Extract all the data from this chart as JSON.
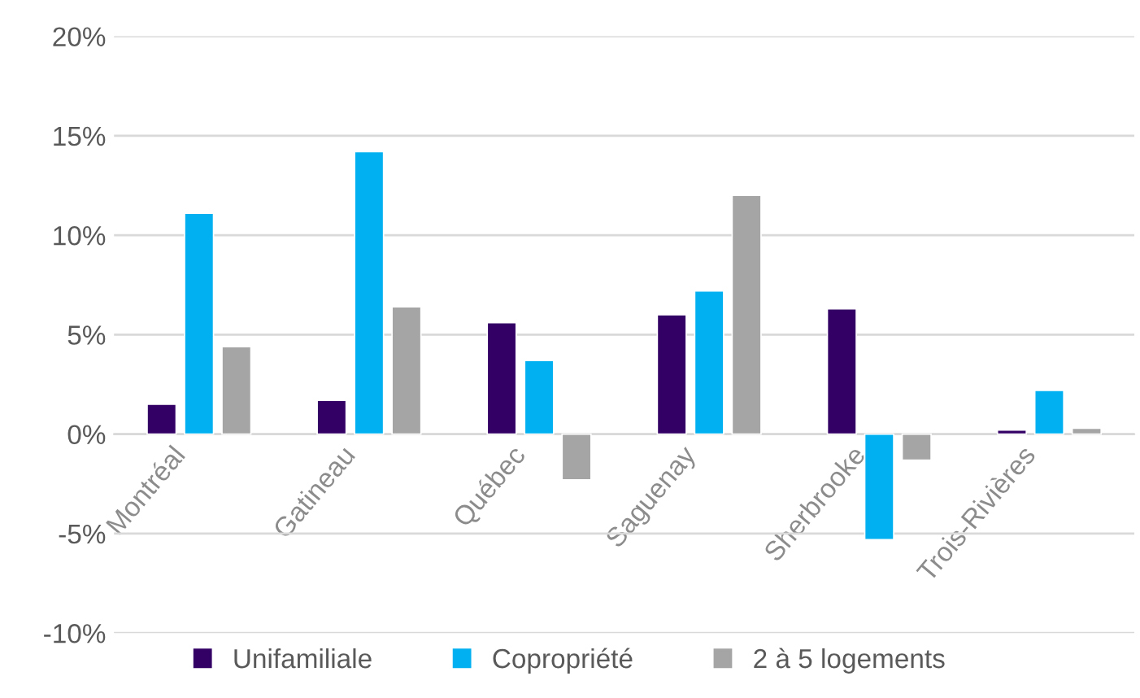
{
  "chart_data": {
    "type": "bar",
    "categories": [
      "Montréal",
      "Gatineau",
      "Québec",
      "Saguenay",
      "Sherbrooke",
      "Trois-Rivières"
    ],
    "series": [
      {
        "name": "Unifamiliale",
        "color": "#330066",
        "values": [
          1.5,
          1.7,
          5.6,
          6.0,
          6.3,
          0.2
        ]
      },
      {
        "name": "Copropriété",
        "color": "#00b0f0",
        "values": [
          11.1,
          14.2,
          3.7,
          7.2,
          -5.3,
          2.2
        ]
      },
      {
        "name": "2 à 5 logements",
        "color": "#a5a5a5",
        "values": [
          4.4,
          6.4,
          -2.3,
          12.0,
          -1.3,
          0.3
        ]
      }
    ],
    "ylim": [
      -10,
      20
    ],
    "yticks": [
      {
        "value": -10,
        "label": "-10%"
      },
      {
        "value": -5,
        "label": "-5%"
      },
      {
        "value": 0,
        "label": "0%"
      },
      {
        "value": 5,
        "label": "5%"
      },
      {
        "value": 10,
        "label": "10%"
      },
      {
        "value": 15,
        "label": "15%"
      },
      {
        "value": 20,
        "label": "20%"
      }
    ],
    "grid": "y",
    "legend": "bottom"
  }
}
